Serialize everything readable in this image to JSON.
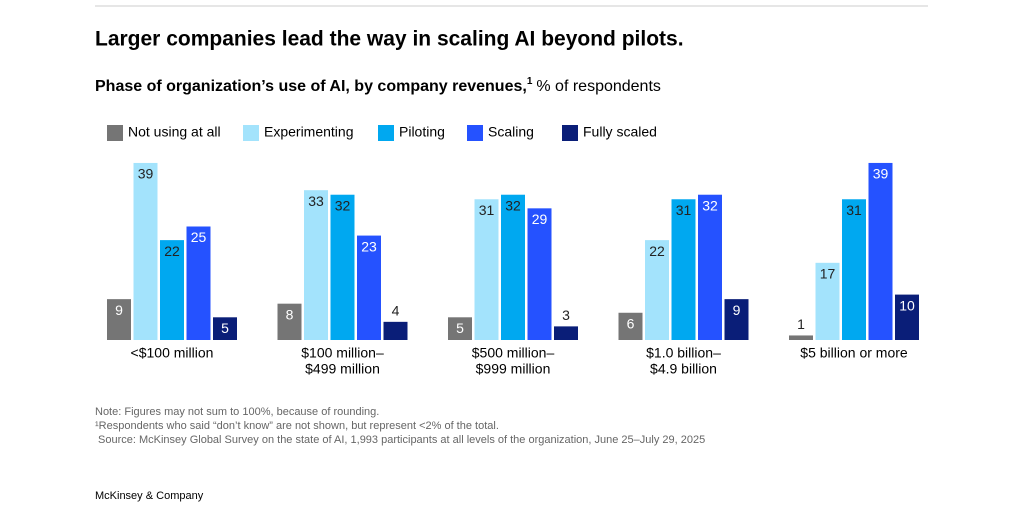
{
  "chart_data": {
    "type": "bar",
    "title": "Larger companies lead the way in scaling AI beyond pilots.",
    "subtitle": "Phase of organization’s use of AI, by company revenues,",
    "subtitle_footnote_mark": "1",
    "unit": "% of respondents",
    "categories": [
      [
        "<$100 million"
      ],
      [
        "$100 million–",
        "$499 million"
      ],
      [
        "$500 million–",
        "$999 million"
      ],
      [
        "$1.0 billion–",
        "$4.9 billion"
      ],
      [
        "$5 billion or more"
      ]
    ],
    "series": [
      {
        "name": "Not using at all",
        "color": "#757575",
        "values": [
          9,
          8,
          5,
          6,
          1
        ]
      },
      {
        "name": "Experimenting",
        "color": "#a3e3fc",
        "values": [
          39,
          33,
          31,
          22,
          17
        ]
      },
      {
        "name": "Piloting",
        "color": "#00a8f0",
        "values": [
          22,
          32,
          32,
          31,
          31
        ]
      },
      {
        "name": "Scaling",
        "color": "#2552ff",
        "values": [
          25,
          23,
          29,
          32,
          39
        ]
      },
      {
        "name": "Fully scaled",
        "color": "#0a1e78",
        "values": [
          5,
          4,
          3,
          9,
          10
        ]
      }
    ],
    "notes": [
      "Note: Figures may not sum to 100%, because of rounding.",
      "¹Respondents who said “don’t know” are not shown, but represent <2% of the total.",
      "Source: McKinsey Global Survey on the state of AI, 1,993 participants at all levels of the organization, June 25–July 29, 2025"
    ],
    "brand": "McKinsey & Company"
  }
}
